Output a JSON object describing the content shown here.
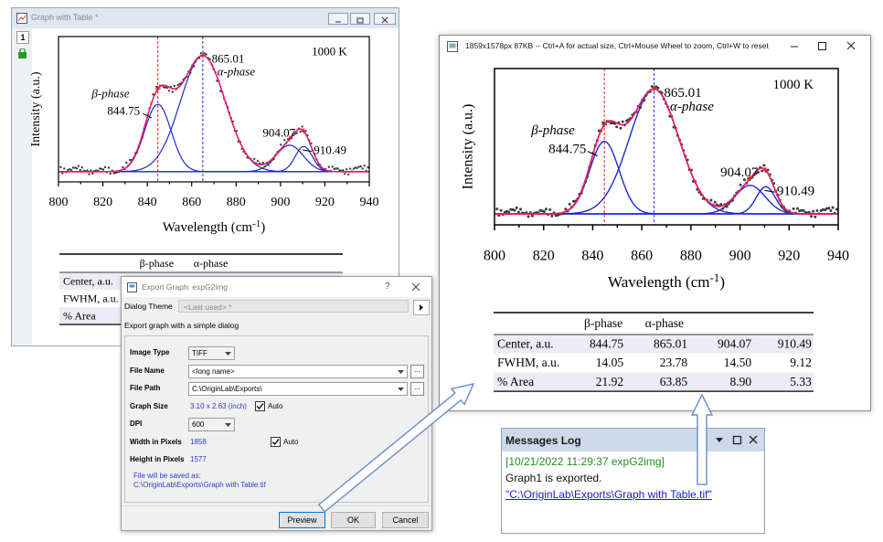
{
  "left_window": {
    "title": "Graph with Table *",
    "layer": "1"
  },
  "preview_window": {
    "title": "1859x1578px  87KB -- Ctrl+A for actual size, Ctrl+Mouse Wheel to zoom, Ctrl+W to reset"
  },
  "graph": {
    "y_label": "Intensity (a.u.)",
    "x_label": "Wavelength (cm",
    "x_label_exponent": "-1",
    "x_label_close": ")",
    "annotation": "1000 K",
    "xlim": [
      800,
      940
    ],
    "xticks": [
      800,
      820,
      840,
      860,
      880,
      900,
      920,
      940
    ]
  },
  "table": {
    "columns": [
      "β-phase",
      "α-phase"
    ],
    "rows": [
      {
        "label": "Center, a.u.",
        "cells": [
          "844.75",
          "865.01",
          "904.07",
          "910.49"
        ]
      },
      {
        "label": "FWHM, a.u.",
        "cells": [
          "14.05",
          "23.78",
          "14.50",
          "9.12"
        ]
      },
      {
        "label": "% Area",
        "cells": [
          "21.92",
          "63.85",
          "8.90",
          "5.33"
        ]
      }
    ]
  },
  "dialog": {
    "title": "Export Graph: expG2img",
    "help": "?",
    "theme_label": "Dialog Theme",
    "theme": "<Last used> *",
    "description": "Export graph with a simple dialog",
    "browse_button": "...",
    "fields": [
      {
        "label": "Image Type",
        "value": "TIFF",
        "control": "dropdown"
      },
      {
        "label": "File Name",
        "value": "<long name>",
        "control": "combo"
      },
      {
        "label": "File Path",
        "value": "C:\\OriginLab\\Exports\\",
        "control": "combo"
      },
      {
        "label": "Graph Size",
        "value": "3.10 x 2.63 (inch)",
        "control": "text",
        "checkbox": "Auto"
      },
      {
        "label": "DPI",
        "value": "600",
        "control": "dropdown"
      },
      {
        "label": "Width in Pixels",
        "value": "1858",
        "control": "text",
        "checkbox": "Auto"
      },
      {
        "label": "Height in Pixels",
        "value": "1577",
        "control": "text"
      }
    ],
    "note": "File will be saved as:",
    "path": "C:\\OriginLab\\Exports\\Graph with Table.tif",
    "buttons": [
      "Preview",
      "OK",
      "Cancel"
    ]
  },
  "messages_log": {
    "title": "Messages Log",
    "entries": [
      "[10/21/2022 11:29:37 expG2img]",
      "Graph1 is exported.",
      "\"C:\\OriginLab\\Exports\\Graph with Table.tif\""
    ]
  }
}
